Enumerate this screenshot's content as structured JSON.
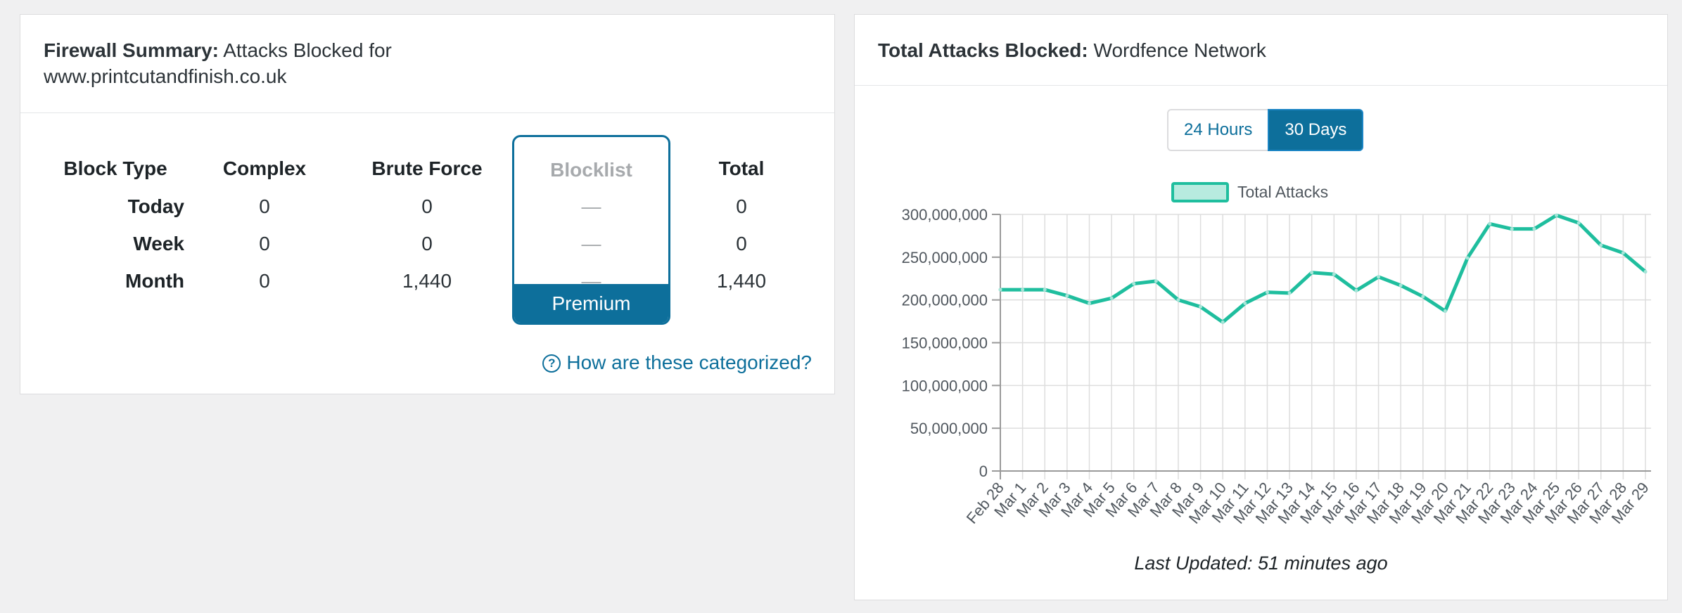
{
  "firewall_summary": {
    "title_bold": "Firewall Summary:",
    "title_rest": "Attacks Blocked for",
    "site": "www.printcutandfinish.co.uk",
    "columns": [
      "Block Type",
      "Complex",
      "Brute Force",
      "Blocklist",
      "Total"
    ],
    "rows": [
      {
        "label": "Today",
        "complex": "0",
        "brute_force": "0",
        "blocklist": "—",
        "total": "0"
      },
      {
        "label": "Week",
        "complex": "0",
        "brute_force": "0",
        "blocklist": "—",
        "total": "0"
      },
      {
        "label": "Month",
        "complex": "0",
        "brute_force": "1,440",
        "blocklist": "—",
        "total": "1,440"
      }
    ],
    "premium_label": "Premium",
    "help_link": "How are these categorized?"
  },
  "network_panel": {
    "title_bold": "Total Attacks Blocked:",
    "title_rest": "Wordfence Network",
    "toggle": {
      "hours_label": "24 Hours",
      "days_label": "30 Days",
      "active": "days"
    },
    "last_updated": "Last Updated: 51 minutes ago"
  },
  "colors": {
    "accent": "#0d6f9b",
    "line": "#1fbe9e",
    "legend_fill": "#b7ebdf"
  },
  "chart_data": {
    "type": "line",
    "title": "",
    "xlabel": "",
    "ylabel": "",
    "legend": "top-center",
    "grid": true,
    "ylim": [
      0,
      300000000
    ],
    "yticks": [
      "0",
      "50,000,000",
      "100,000,000",
      "150,000,000",
      "200,000,000",
      "250,000,000",
      "300,000,000"
    ],
    "categories": [
      "Feb 28",
      "Mar 1",
      "Mar 2",
      "Mar 3",
      "Mar 4",
      "Mar 5",
      "Mar 6",
      "Mar 7",
      "Mar 8",
      "Mar 9",
      "Mar 10",
      "Mar 11",
      "Mar 12",
      "Mar 13",
      "Mar 14",
      "Mar 15",
      "Mar 16",
      "Mar 17",
      "Mar 18",
      "Mar 19",
      "Mar 20",
      "Mar 21",
      "Mar 22",
      "Mar 23",
      "Mar 24",
      "Mar 25",
      "Mar 26",
      "Mar 27",
      "Mar 28",
      "Mar 29"
    ],
    "series": [
      {
        "name": "Total Attacks",
        "values": [
          212000000,
          212000000,
          212000000,
          205000000,
          196000000,
          202000000,
          219000000,
          222000000,
          200000000,
          192000000,
          174000000,
          196000000,
          209000000,
          208000000,
          232000000,
          230000000,
          211000000,
          227000000,
          217000000,
          204000000,
          187000000,
          249000000,
          289000000,
          283000000,
          283000000,
          299000000,
          290000000,
          264000000,
          255000000,
          233000000
        ]
      }
    ]
  }
}
